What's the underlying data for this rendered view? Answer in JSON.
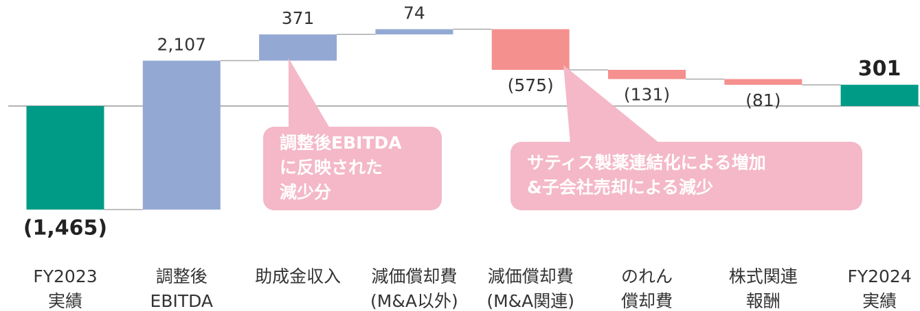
{
  "chart_data": {
    "type": "waterfall",
    "categories": [
      [
        "FY2023",
        "実績"
      ],
      [
        "調整後",
        "EBITDA"
      ],
      [
        "助成金収入"
      ],
      [
        "減価償却費",
        "(M&A以外)"
      ],
      [
        "減価償却費",
        "(M&A関連)"
      ],
      [
        "のれん",
        "償却費"
      ],
      [
        "株式関連",
        "報酬"
      ],
      [
        "FY2024",
        "実績"
      ]
    ],
    "values": [
      -1465,
      2107,
      371,
      74,
      -575,
      -131,
      -81,
      301
    ],
    "value_labels": [
      "(1,465)",
      "2,107",
      "371",
      "74",
      "(575)",
      "(131)",
      "(81)",
      "301"
    ],
    "colors": {
      "total": "#009b87",
      "increase": "#94a8d4",
      "decrease": "#f4908e"
    },
    "ylim": [
      -2900,
      1500
    ],
    "annotations": [
      {
        "lines": [
          "調整後EBITDA",
          "に反映された",
          "減少分"
        ]
      },
      {
        "lines": [
          "サティス製薬連結化による増加",
          "&子会社売却による減少"
        ]
      }
    ]
  }
}
